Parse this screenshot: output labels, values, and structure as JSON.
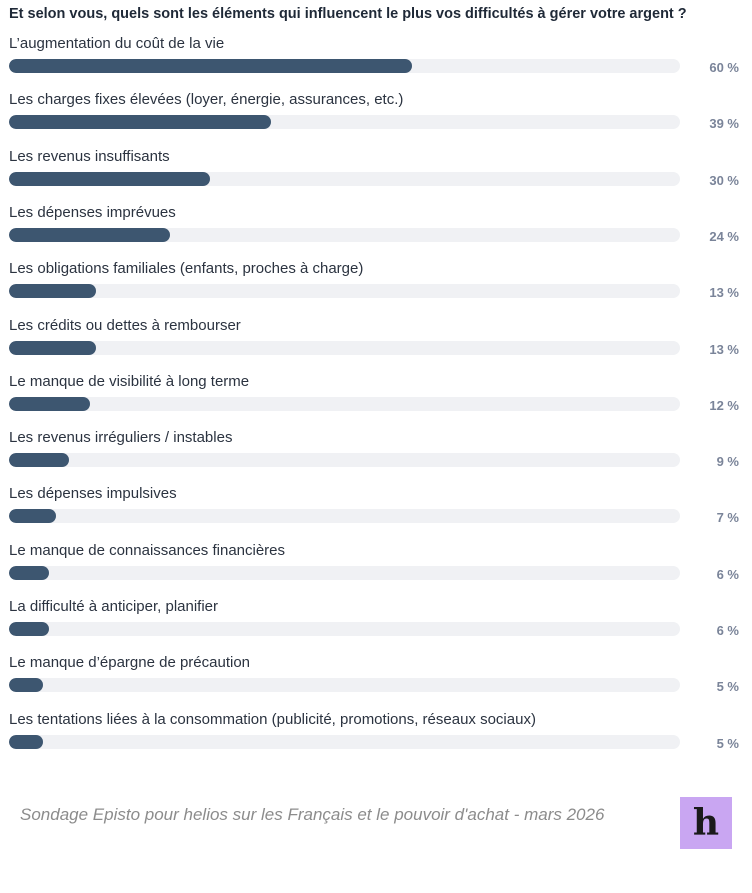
{
  "chart_data": {
    "type": "bar",
    "title": "Et selon vous, quels sont les éléments qui influencent le plus vos difficultés à gérer votre argent ?",
    "orientation": "horizontal",
    "unit": "%",
    "xlim": [
      0,
      100
    ],
    "categories": [
      "L’augmentation du coût de la vie",
      "Les charges fixes élevées (loyer, énergie, assurances, etc.)",
      "Les revenus insuffisants",
      "Les dépenses imprévues",
      "Les obligations familiales (enfants, proches à charge)",
      "Les crédits ou dettes à rembourser",
      "Le manque de visibilité à long terme",
      "Les revenus irréguliers / instables",
      "Les dépenses impulsives",
      "Le manque de connaissances financières",
      "La difficulté à anticiper, planifier",
      "Le manque d’épargne de précaution",
      "Les tentations liées à la consommation (publicité, promotions, réseaux sociaux)"
    ],
    "values": [
      60,
      39,
      30,
      24,
      13,
      13,
      12,
      9,
      7,
      6,
      6,
      5,
      5
    ],
    "value_labels": [
      "60 %",
      "39 %",
      "30 %",
      "24 %",
      "13 %",
      "13 %",
      "12 %",
      "9 %",
      "7 %",
      "6 %",
      "6 %",
      "5 %",
      "5 %"
    ],
    "colors": {
      "bar": "#3d5670",
      "track": "#f0f1f4"
    }
  },
  "footer": {
    "source": "Sondage Episto pour helios sur les Français et le pouvoir d'achat - mars 2026",
    "logo_letter": "h",
    "logo_color": "#c9a6f2"
  }
}
